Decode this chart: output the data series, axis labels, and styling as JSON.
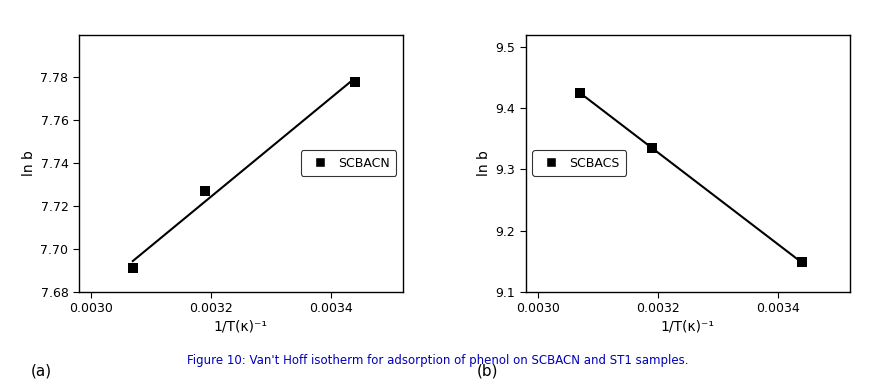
{
  "panel_a": {
    "x": [
      0.00307,
      0.00319,
      0.00344
    ],
    "y": [
      7.691,
      7.727,
      7.778
    ],
    "xlabel": "1/T(κ)⁻¹",
    "ylabel": "ln b",
    "legend_label": "SCBACN",
    "xlim": [
      0.00298,
      0.00352
    ],
    "ylim": [
      7.68,
      7.8
    ],
    "xticks": [
      0.003,
      0.0032,
      0.0034
    ],
    "yticks": [
      7.68,
      7.7,
      7.72,
      7.74,
      7.76,
      7.78
    ],
    "ytick_labels": [
      "7.68",
      "7.70",
      "7.72",
      "7.74",
      "7.76",
      "7.78"
    ],
    "xtick_labels": [
      "0.0030",
      "0.0032",
      "0.0034"
    ],
    "panel_label": "(a)",
    "legend_loc": "center right"
  },
  "panel_b": {
    "x": [
      0.00307,
      0.00319,
      0.00344
    ],
    "y": [
      9.425,
      9.335,
      9.148
    ],
    "xlabel": "1/T(κ)⁻¹",
    "ylabel": "ln b",
    "legend_label": "SCBACS",
    "xlim": [
      0.00298,
      0.00352
    ],
    "ylim": [
      9.1,
      9.52
    ],
    "xticks": [
      0.003,
      0.0032,
      0.0034
    ],
    "yticks": [
      9.1,
      9.2,
      9.3,
      9.4,
      9.5
    ],
    "ytick_labels": [
      "9.1",
      "9.2",
      "9.3",
      "9.4",
      "9.5"
    ],
    "xtick_labels": [
      "0.0030",
      "0.0032",
      "0.0034"
    ],
    "panel_label": "(b)",
    "legend_loc": "center left"
  },
  "caption": "Figure 10: Van't Hoff isotherm for adsorption of phenol on SCBACN and ST1 samples.",
  "caption_color": "#0000bb",
  "line_color": "#000000",
  "marker_color": "#000000",
  "background_color": "#ffffff",
  "tick_label_color": "#000000",
  "label_color": "#000000"
}
